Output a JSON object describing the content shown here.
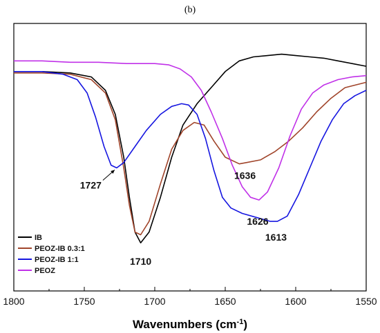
{
  "chart_data": {
    "type": "line",
    "panel_label": "(b)",
    "xlabel": "Wavenumbers (cm",
    "xlabel_sup": "-1",
    "xlabel_tail": ")",
    "ylabel": "",
    "xlim": [
      1800,
      1550
    ],
    "ylim": [
      0,
      100
    ],
    "x_ticks": [
      1800,
      1750,
      1700,
      1650,
      1600,
      1550
    ],
    "y_ticks_visible": false,
    "legend_position": "bottom-left",
    "series": [
      {
        "name": "IB",
        "color": "#000000",
        "points": [
          [
            1800,
            82
          ],
          [
            1780,
            82
          ],
          [
            1760,
            81.5
          ],
          [
            1745,
            80
          ],
          [
            1735,
            75
          ],
          [
            1728,
            66
          ],
          [
            1722,
            50
          ],
          [
            1718,
            35
          ],
          [
            1714,
            22
          ],
          [
            1710,
            18
          ],
          [
            1704,
            22
          ],
          [
            1696,
            35
          ],
          [
            1688,
            50
          ],
          [
            1680,
            62
          ],
          [
            1670,
            70
          ],
          [
            1660,
            76
          ],
          [
            1650,
            82
          ],
          [
            1640,
            86
          ],
          [
            1630,
            87.5
          ],
          [
            1620,
            88
          ],
          [
            1610,
            88.5
          ],
          [
            1600,
            88
          ],
          [
            1590,
            87.5
          ],
          [
            1580,
            87
          ],
          [
            1570,
            86
          ],
          [
            1560,
            85
          ],
          [
            1550,
            84
          ]
        ]
      },
      {
        "name": "PEOZ-IB 0.3:1",
        "color": "#a0442a",
        "points": [
          [
            1800,
            81.5
          ],
          [
            1780,
            81.5
          ],
          [
            1760,
            81
          ],
          [
            1745,
            79
          ],
          [
            1735,
            74
          ],
          [
            1728,
            64
          ],
          [
            1722,
            46
          ],
          [
            1718,
            32
          ],
          [
            1714,
            22
          ],
          [
            1710,
            21
          ],
          [
            1704,
            26
          ],
          [
            1696,
            40
          ],
          [
            1688,
            53
          ],
          [
            1680,
            60
          ],
          [
            1672,
            63
          ],
          [
            1665,
            62
          ],
          [
            1658,
            56
          ],
          [
            1650,
            50
          ],
          [
            1640,
            47.5
          ],
          [
            1635,
            48
          ],
          [
            1625,
            49
          ],
          [
            1615,
            52
          ],
          [
            1605,
            56
          ],
          [
            1595,
            61
          ],
          [
            1585,
            67
          ],
          [
            1575,
            72
          ],
          [
            1565,
            76
          ],
          [
            1550,
            78
          ]
        ]
      },
      {
        "name": "PEOZ-IB 1:1",
        "color": "#1515e0",
        "points": [
          [
            1800,
            82
          ],
          [
            1780,
            82
          ],
          [
            1765,
            81
          ],
          [
            1755,
            79
          ],
          [
            1748,
            74
          ],
          [
            1742,
            65
          ],
          [
            1736,
            54
          ],
          [
            1731,
            47
          ],
          [
            1727,
            46
          ],
          [
            1722,
            48
          ],
          [
            1714,
            54
          ],
          [
            1706,
            60
          ],
          [
            1696,
            66
          ],
          [
            1688,
            69
          ],
          [
            1681,
            70
          ],
          [
            1676,
            69.5
          ],
          [
            1670,
            66
          ],
          [
            1664,
            57
          ],
          [
            1658,
            45
          ],
          [
            1652,
            35
          ],
          [
            1646,
            31
          ],
          [
            1638,
            29
          ],
          [
            1628,
            27.5
          ],
          [
            1618,
            26
          ],
          [
            1613,
            26
          ],
          [
            1606,
            28
          ],
          [
            1598,
            36
          ],
          [
            1590,
            46
          ],
          [
            1582,
            56
          ],
          [
            1574,
            64
          ],
          [
            1566,
            70
          ],
          [
            1558,
            73
          ],
          [
            1550,
            75
          ]
        ]
      },
      {
        "name": "PEOZ",
        "color": "#c030e8",
        "points": [
          [
            1800,
            86
          ],
          [
            1780,
            86
          ],
          [
            1760,
            85.5
          ],
          [
            1740,
            85.5
          ],
          [
            1720,
            85
          ],
          [
            1700,
            85
          ],
          [
            1690,
            84.5
          ],
          [
            1682,
            83
          ],
          [
            1674,
            80
          ],
          [
            1667,
            75
          ],
          [
            1660,
            67
          ],
          [
            1652,
            57
          ],
          [
            1645,
            47
          ],
          [
            1638,
            39
          ],
          [
            1632,
            35
          ],
          [
            1626,
            34
          ],
          [
            1620,
            37
          ],
          [
            1612,
            46
          ],
          [
            1604,
            58
          ],
          [
            1596,
            68
          ],
          [
            1588,
            74
          ],
          [
            1580,
            77
          ],
          [
            1570,
            79
          ],
          [
            1560,
            80
          ],
          [
            1550,
            80.5
          ]
        ]
      }
    ],
    "annotations": [
      {
        "text": "1727",
        "x": 1727,
        "y": 46
      },
      {
        "text": "1710",
        "x": 1710,
        "y": 18
      },
      {
        "text": "1636",
        "x": 1636,
        "y": 47.5
      },
      {
        "text": "1626",
        "x": 1626,
        "y": 34
      },
      {
        "text": "1613",
        "x": 1613,
        "y": 26
      }
    ]
  }
}
